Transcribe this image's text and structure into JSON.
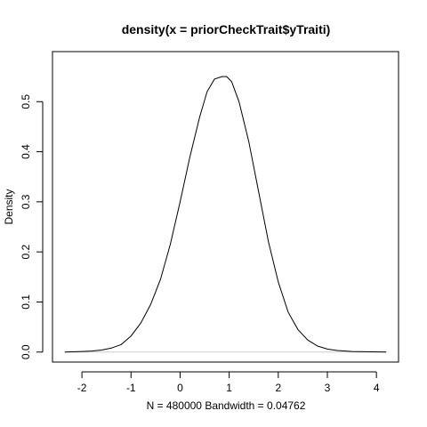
{
  "chart_data": {
    "type": "line",
    "title": "density(x = priorCheckTrait$yTraiti)",
    "xlabel": "N = 480000   Bandwidth = 0.04762",
    "ylabel": "Density",
    "xlim": [
      -2.6,
      4.45
    ],
    "ylim": [
      -0.02,
      0.6
    ],
    "xticks": [
      -2,
      -1,
      0,
      1,
      2,
      3,
      4
    ],
    "yticks": [
      0.0,
      0.1,
      0.2,
      0.3,
      0.4,
      0.5
    ],
    "xtick_labels": [
      "-2",
      "-1",
      "0",
      "1",
      "2",
      "3",
      "4"
    ],
    "ytick_labels": [
      "0.0",
      "0.1",
      "0.2",
      "0.3",
      "0.4",
      "0.5"
    ],
    "grid": false,
    "legend": "none",
    "series": [
      {
        "x": [
          -2.35,
          -2.0,
          -1.8,
          -1.6,
          -1.4,
          -1.2,
          -1.0,
          -0.8,
          -0.6,
          -0.4,
          -0.2,
          0.0,
          0.2,
          0.4,
          0.55,
          0.7,
          0.85,
          0.95,
          1.05,
          1.2,
          1.4,
          1.6,
          1.8,
          2.0,
          2.2,
          2.4,
          2.6,
          2.8,
          3.0,
          3.2,
          3.5,
          4.2
        ],
        "y": [
          0.0,
          0.001,
          0.002,
          0.004,
          0.008,
          0.015,
          0.032,
          0.058,
          0.095,
          0.145,
          0.215,
          0.3,
          0.39,
          0.47,
          0.52,
          0.545,
          0.55,
          0.55,
          0.54,
          0.5,
          0.42,
          0.32,
          0.22,
          0.14,
          0.08,
          0.045,
          0.024,
          0.012,
          0.006,
          0.003,
          0.001,
          0.0
        ]
      }
    ],
    "colors": {
      "line": "#000000",
      "baseline": "#cccccc",
      "axes": "#000000"
    }
  }
}
